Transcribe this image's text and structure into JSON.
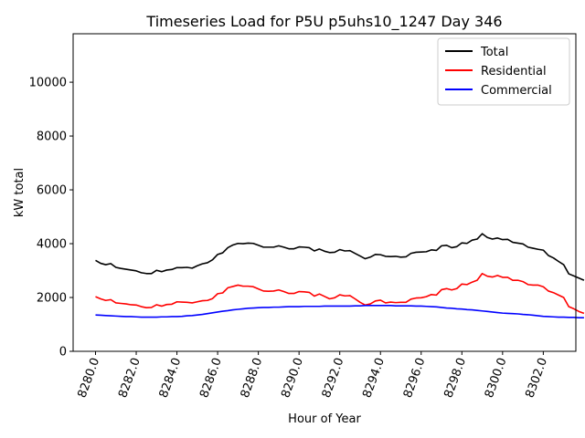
{
  "chart_data": {
    "type": "line",
    "title": "Timeseries Load for P5U p5uhs10_1247  Day 346",
    "xlabel": "Hour of Year",
    "ylabel": "kW total",
    "xlim": [
      8278.9,
      8303.6
    ],
    "ylim": [
      0,
      11800
    ],
    "xticks": [
      8280,
      8282,
      8284,
      8286,
      8288,
      8290,
      8292,
      8294,
      8296,
      8298,
      8300,
      8302
    ],
    "xtick_labels": [
      "8280.0",
      "8282.0",
      "8284.0",
      "8286.0",
      "8288.0",
      "8290.0",
      "8292.0",
      "8294.0",
      "8296.0",
      "8298.0",
      "8300.0",
      "8302.0"
    ],
    "yticks": [
      0,
      2000,
      4000,
      6000,
      8000,
      10000
    ],
    "ytick_labels": [
      "0",
      "2000",
      "4000",
      "6000",
      "8000",
      "10000"
    ],
    "legend_position": "top-right",
    "x_start": 8280,
    "x_step": 0.25,
    "series": [
      {
        "name": "Total",
        "color": "#000000",
        "values": [
          3380,
          3270,
          3220,
          3260,
          3120,
          3080,
          3050,
          3020,
          2990,
          2920,
          2890,
          2890,
          3010,
          2960,
          3020,
          3040,
          3110,
          3110,
          3120,
          3090,
          3180,
          3250,
          3290,
          3400,
          3600,
          3660,
          3850,
          3950,
          4010,
          4000,
          4020,
          4010,
          3940,
          3870,
          3870,
          3870,
          3920,
          3870,
          3810,
          3810,
          3880,
          3870,
          3850,
          3730,
          3800,
          3720,
          3670,
          3680,
          3780,
          3730,
          3740,
          3640,
          3540,
          3440,
          3500,
          3600,
          3590,
          3530,
          3520,
          3530,
          3500,
          3510,
          3640,
          3680,
          3690,
          3700,
          3770,
          3750,
          3920,
          3940,
          3850,
          3890,
          4030,
          4010,
          4130,
          4170,
          4370,
          4230,
          4170,
          4210,
          4150,
          4160,
          4050,
          4020,
          3990,
          3870,
          3830,
          3790,
          3760,
          3560,
          3470,
          3340,
          3220,
          2880,
          2800,
          2720,
          2640
        ]
      },
      {
        "name": "Residential",
        "color": "#ff0000",
        "values": [
          2030,
          1950,
          1890,
          1920,
          1800,
          1780,
          1760,
          1730,
          1720,
          1660,
          1620,
          1630,
          1730,
          1680,
          1740,
          1750,
          1840,
          1830,
          1820,
          1800,
          1840,
          1880,
          1890,
          1960,
          2140,
          2170,
          2360,
          2410,
          2460,
          2420,
          2420,
          2400,
          2320,
          2240,
          2230,
          2240,
          2280,
          2220,
          2150,
          2150,
          2220,
          2210,
          2190,
          2050,
          2130,
          2040,
          1950,
          1990,
          2100,
          2060,
          2070,
          1950,
          1820,
          1720,
          1760,
          1870,
          1900,
          1800,
          1830,
          1810,
          1820,
          1820,
          1940,
          1980,
          1990,
          2030,
          2110,
          2090,
          2290,
          2330,
          2280,
          2330,
          2500,
          2480,
          2570,
          2640,
          2890,
          2790,
          2760,
          2820,
          2750,
          2750,
          2640,
          2640,
          2590,
          2480,
          2460,
          2460,
          2400,
          2240,
          2180,
          2090,
          2000,
          1660,
          1580,
          1480,
          1410
        ]
      },
      {
        "name": "Commercial",
        "color": "#0000ff",
        "values": [
          1350,
          1340,
          1330,
          1320,
          1310,
          1300,
          1290,
          1290,
          1280,
          1270,
          1270,
          1270,
          1270,
          1280,
          1280,
          1290,
          1290,
          1300,
          1320,
          1330,
          1350,
          1370,
          1400,
          1430,
          1460,
          1490,
          1510,
          1540,
          1560,
          1580,
          1600,
          1610,
          1620,
          1630,
          1630,
          1640,
          1640,
          1650,
          1660,
          1660,
          1660,
          1670,
          1670,
          1670,
          1670,
          1680,
          1680,
          1680,
          1680,
          1680,
          1680,
          1690,
          1690,
          1700,
          1700,
          1700,
          1700,
          1700,
          1700,
          1690,
          1690,
          1690,
          1690,
          1680,
          1680,
          1670,
          1660,
          1650,
          1630,
          1610,
          1600,
          1580,
          1570,
          1550,
          1540,
          1520,
          1500,
          1480,
          1460,
          1440,
          1420,
          1410,
          1400,
          1390,
          1370,
          1360,
          1340,
          1320,
          1300,
          1290,
          1280,
          1270,
          1270,
          1260,
          1260,
          1250,
          1250
        ]
      }
    ]
  }
}
